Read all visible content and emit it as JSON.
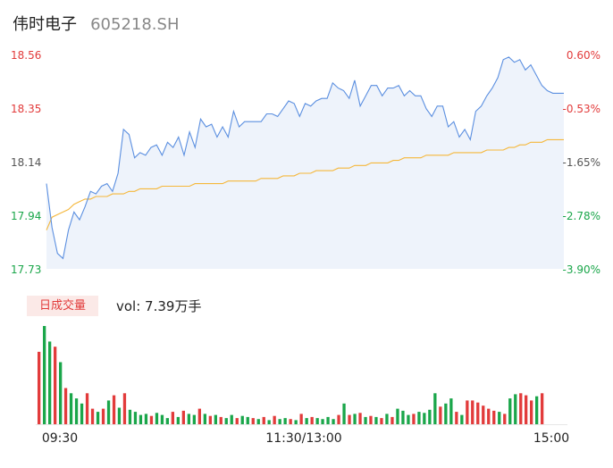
{
  "header": {
    "name": "伟时电子",
    "code": "605218.SH"
  },
  "volume_panel": {
    "tag": "日成交量",
    "readout": "vol: 7.39万手"
  },
  "colors": {
    "price_line": "#5b8fe0",
    "avg_line": "#f5b73a",
    "area_fill": "#eef3fb",
    "up": "#e23b3b",
    "down": "#1aa64a",
    "flat": "#555555"
  },
  "chart_data": [
    {
      "type": "line",
      "title": "",
      "x_ticks": [
        "09:30",
        "11:30/13:00",
        "15:00"
      ],
      "ylim": [
        17.73,
        18.56
      ],
      "y_ticks_left": [
        "18.56",
        "18.35",
        "18.14",
        "17.94",
        "17.73"
      ],
      "y_ticks_right": [
        "0.60%",
        "-0.53%",
        "-1.65%",
        "-2.78%",
        "-3.90%"
      ],
      "series": [
        {
          "role": "price",
          "values": [
            18.06,
            17.89,
            17.79,
            17.77,
            17.88,
            17.95,
            17.92,
            17.97,
            18.03,
            18.02,
            18.05,
            18.06,
            18.03,
            18.1,
            18.27,
            18.25,
            18.16,
            18.18,
            18.17,
            18.2,
            18.21,
            18.17,
            18.22,
            18.2,
            18.24,
            18.17,
            18.26,
            18.2,
            18.31,
            18.28,
            18.29,
            18.24,
            18.28,
            18.24,
            18.34,
            18.28,
            18.3,
            18.3,
            18.3,
            18.3,
            18.33,
            18.33,
            18.32,
            18.35,
            18.38,
            18.37,
            18.32,
            18.37,
            18.36,
            18.38,
            18.39,
            18.39,
            18.45,
            18.43,
            18.42,
            18.39,
            18.46,
            18.36,
            18.4,
            18.44,
            18.44,
            18.4,
            18.43,
            18.43,
            18.44,
            18.4,
            18.42,
            18.4,
            18.4,
            18.35,
            18.32,
            18.36,
            18.36,
            18.28,
            18.3,
            18.24,
            18.27,
            18.23,
            18.34,
            18.36,
            18.4,
            18.43,
            18.47,
            18.54,
            18.55,
            18.53,
            18.54,
            18.5,
            18.52,
            18.48,
            18.44,
            18.42,
            18.41,
            18.41,
            18.41
          ]
        },
        {
          "role": "average",
          "values": [
            17.88,
            17.93,
            17.94,
            17.95,
            17.96,
            17.98,
            17.99,
            18.0,
            18.0,
            18.01,
            18.01,
            18.01,
            18.02,
            18.02,
            18.02,
            18.03,
            18.03,
            18.04,
            18.04,
            18.04,
            18.04,
            18.05,
            18.05,
            18.05,
            18.05,
            18.05,
            18.05,
            18.06,
            18.06,
            18.06,
            18.06,
            18.06,
            18.06,
            18.07,
            18.07,
            18.07,
            18.07,
            18.07,
            18.07,
            18.08,
            18.08,
            18.08,
            18.08,
            18.09,
            18.09,
            18.09,
            18.1,
            18.1,
            18.1,
            18.11,
            18.11,
            18.11,
            18.11,
            18.12,
            18.12,
            18.12,
            18.13,
            18.13,
            18.13,
            18.14,
            18.14,
            18.14,
            18.14,
            18.15,
            18.15,
            18.16,
            18.16,
            18.16,
            18.16,
            18.17,
            18.17,
            18.17,
            18.17,
            18.17,
            18.18,
            18.18,
            18.18,
            18.18,
            18.18,
            18.18,
            18.19,
            18.19,
            18.19,
            18.19,
            18.2,
            18.2,
            18.21,
            18.21,
            18.22,
            18.22,
            18.22,
            18.23,
            18.23,
            18.23,
            18.23
          ]
        }
      ]
    },
    {
      "type": "bar",
      "title": "",
      "values": [
        7,
        9.5,
        8,
        7.5,
        6,
        3.5,
        3,
        2.5,
        2,
        3,
        1.5,
        1.2,
        1.5,
        2.3,
        2.8,
        1.6,
        3,
        1.4,
        1.2,
        0.9,
        1.0,
        0.8,
        1.1,
        0.9,
        0.6,
        1.2,
        0.7,
        1.3,
        1.0,
        0.9,
        1.5,
        1.0,
        0.8,
        0.9,
        0.7,
        0.6,
        0.9,
        0.6,
        0.8,
        0.7,
        0.6,
        0.5,
        0.7,
        0.4,
        0.8,
        0.5,
        0.6,
        0.5,
        0.4,
        1.0,
        0.6,
        0.7,
        0.6,
        0.5,
        0.7,
        0.5,
        0.9,
        2.0,
        0.9,
        1.0,
        1.1,
        0.7,
        0.8,
        0.7,
        0.6,
        1.0,
        0.7,
        1.5,
        1.3,
        0.9,
        1.0,
        1.2,
        1.1,
        1.4,
        3.0,
        1.7,
        2.0,
        2.5,
        1.2,
        0.9,
        2.3,
        2.3,
        2.1,
        1.8,
        1.5,
        1.3,
        1.2,
        1.0,
        2.5,
        2.9,
        3.0,
        2.8,
        2.3,
        2.7,
        3.0
      ],
      "direction": [
        "up",
        "down",
        "down",
        "up",
        "down",
        "up",
        "down",
        "down",
        "down",
        "up",
        "up",
        "down",
        "up",
        "down",
        "up",
        "down",
        "up",
        "down",
        "down",
        "down",
        "down",
        "up",
        "down",
        "down",
        "down",
        "up",
        "down",
        "up",
        "down",
        "down",
        "up",
        "down",
        "up",
        "down",
        "up",
        "down",
        "down",
        "up",
        "down",
        "down",
        "up",
        "down",
        "up",
        "down",
        "up",
        "down",
        "down",
        "up",
        "down",
        "up",
        "down",
        "up",
        "down",
        "down",
        "down",
        "down",
        "up",
        "down",
        "up",
        "down",
        "up",
        "down",
        "up",
        "down",
        "up",
        "down",
        "up",
        "down",
        "down",
        "down",
        "up",
        "down",
        "down",
        "down",
        "down",
        "up",
        "down",
        "down",
        "up",
        "down",
        "up",
        "up",
        "up",
        "up",
        "up",
        "up",
        "down",
        "up",
        "down",
        "down",
        "up",
        "up",
        "up",
        "down",
        "up"
      ]
    }
  ]
}
